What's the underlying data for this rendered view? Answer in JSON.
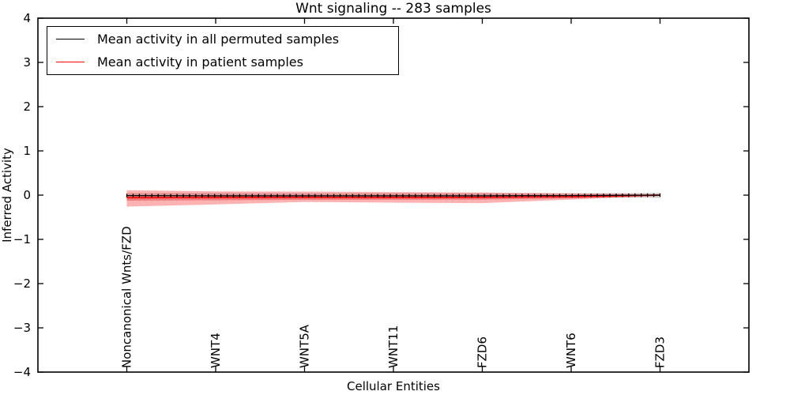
{
  "chart_data": {
    "type": "line",
    "title": "Wnt signaling -- 283 samples",
    "xlabel": "Cellular Entities",
    "ylabel": "Inferred Activity",
    "ylim": [
      -4,
      4
    ],
    "xlim": [
      0,
      8
    ],
    "grid": false,
    "legend_position": "upper left",
    "ytick_values": [
      4,
      3,
      2,
      1,
      0,
      -1,
      -2,
      -3,
      -4
    ],
    "ytick_labels": [
      "4",
      "3",
      "2",
      "1",
      "0",
      "−1",
      "−2",
      "−3",
      "−4"
    ],
    "categories": [
      "Noncanonical Wnts/FZD",
      "WNT4",
      "WNT5A",
      "WNT11",
      "FZD6",
      "WNT6",
      "FZD3"
    ],
    "category_positions": [
      1,
      2,
      3,
      4,
      5,
      6,
      7
    ],
    "x": [
      1,
      2,
      3,
      4,
      5,
      6,
      7
    ],
    "series": [
      {
        "name": "Mean activity in all permuted samples",
        "color": "#000000",
        "marker": "+",
        "values": [
          -0.01,
          -0.015,
          -0.015,
          -0.015,
          -0.015,
          -0.01,
          0.0
        ]
      },
      {
        "name": "Mean activity in patient samples",
        "color": "#ff0000",
        "marker": null,
        "values": [
          -0.06,
          -0.055,
          -0.05,
          -0.055,
          -0.05,
          -0.035,
          0.0
        ]
      }
    ],
    "bands": [
      {
        "name": "permuted-samples-std-band",
        "color": "rgba(100,100,100,0.30)",
        "upper": [
          0.045,
          0.045,
          0.04,
          0.04,
          0.04,
          0.04,
          0.05
        ],
        "lower": [
          -0.055,
          -0.055,
          -0.05,
          -0.05,
          -0.05,
          -0.05,
          -0.06
        ]
      },
      {
        "name": "patient-samples-outer-band",
        "color": "rgba(255,0,0,0.30)",
        "upper": [
          0.11,
          0.085,
          0.08,
          0.07,
          0.06,
          0.04,
          0.02
        ],
        "lower": [
          -0.26,
          -0.21,
          -0.155,
          -0.17,
          -0.18,
          -0.1,
          -0.02
        ]
      },
      {
        "name": "patient-samples-inner-band",
        "color": "rgba(200,0,0,0.30)",
        "upper": [
          -0.015,
          -0.015,
          -0.01,
          -0.015,
          -0.01,
          -0.005,
          0.01
        ],
        "lower": [
          -0.125,
          -0.115,
          -0.105,
          -0.105,
          -0.1,
          -0.075,
          -0.01
        ]
      }
    ]
  }
}
